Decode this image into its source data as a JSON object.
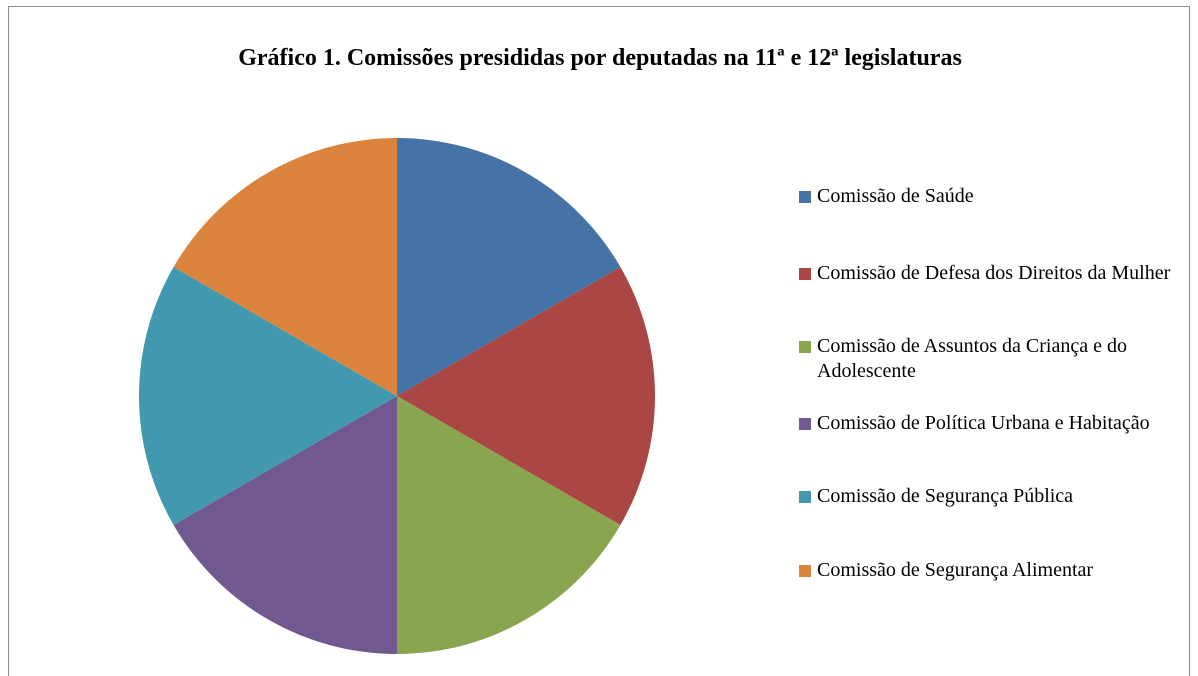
{
  "chart_data": {
    "type": "pie",
    "title": "Gráfico 1. Comissões presididas por deputadas na 11ª e 12ª legislaturas",
    "categories": [
      "Comissão de Saúde",
      "Comissão de Defesa dos Direitos da Mulher",
      "Comissão de Assuntos da Criança e do Adolescente",
      "Comissão de Política Urbana e Habitação",
      "Comissão de Segurança Pública",
      "Comissão de Segurança Alimentar"
    ],
    "values": [
      1,
      1,
      1,
      1,
      1,
      1
    ],
    "colors": [
      "#4572a7",
      "#aa4643",
      "#89a54e",
      "#71588f",
      "#4198af",
      "#db843d"
    ],
    "legend": "right"
  }
}
